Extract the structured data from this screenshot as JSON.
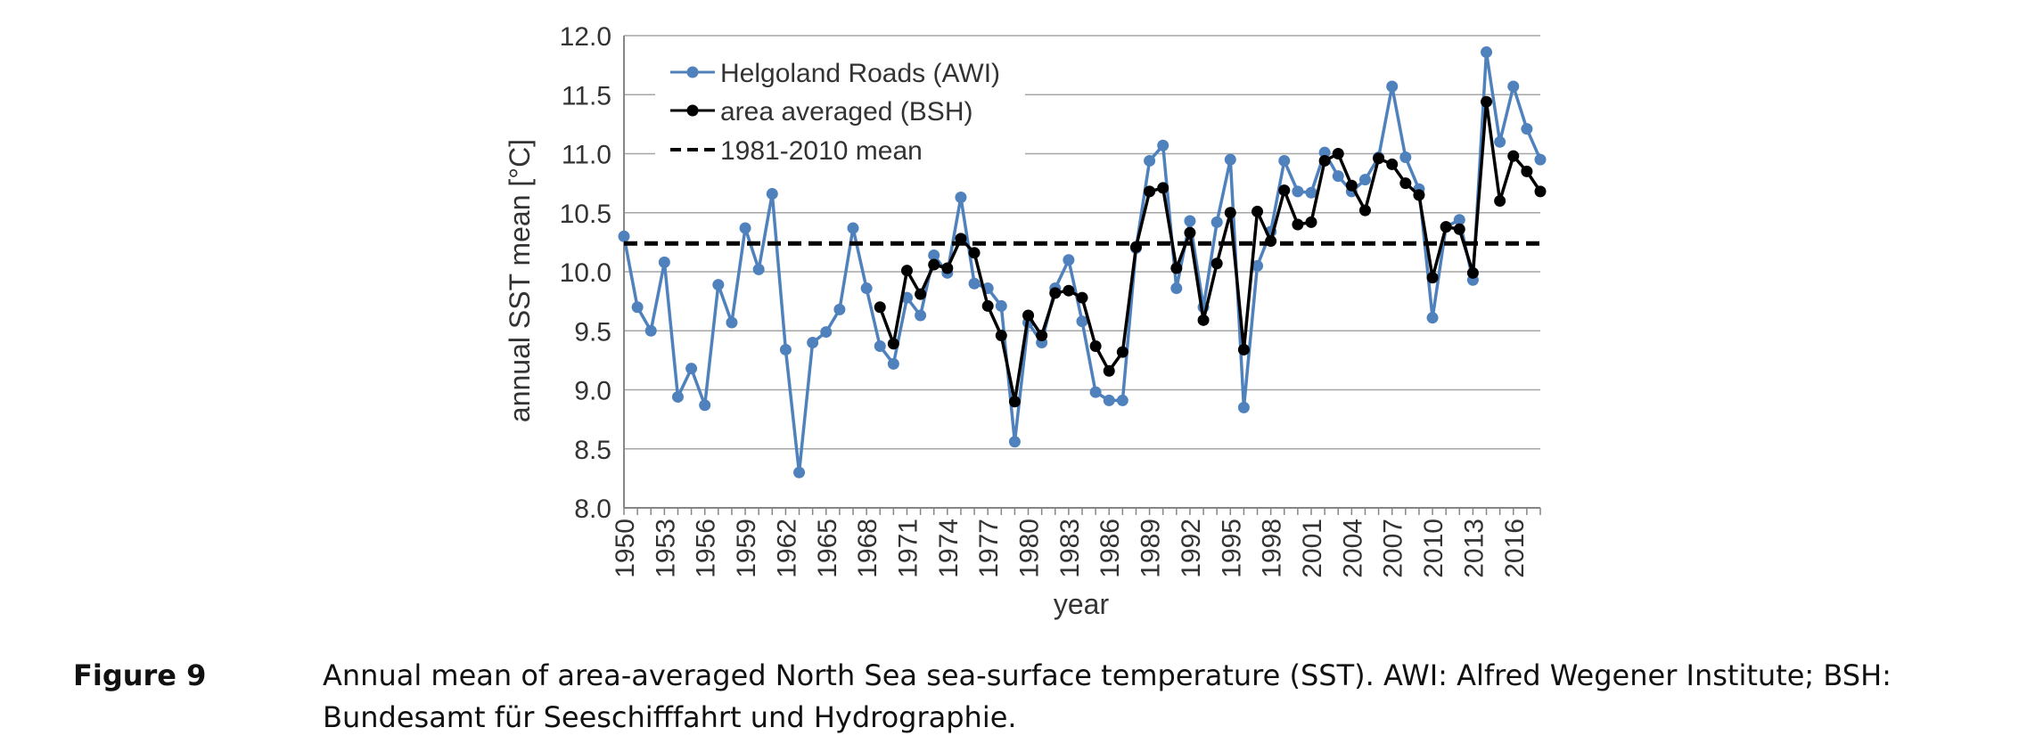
{
  "chart_data": {
    "type": "line",
    "xlabel": "year",
    "ylabel": "annual SST mean [°C]",
    "ylim": [
      8.0,
      12.0
    ],
    "yticks": [
      "8.0",
      "8.5",
      "9.0",
      "9.5",
      "10.0",
      "10.5",
      "11.0",
      "11.5",
      "12.0"
    ],
    "xlim": [
      1950,
      2018
    ],
    "xticks": [
      "1950",
      "1953",
      "1956",
      "1959",
      "1962",
      "1965",
      "1968",
      "1971",
      "1974",
      "1977",
      "1980",
      "1983",
      "1986",
      "1989",
      "1992",
      "1995",
      "1998",
      "2001",
      "2004",
      "2007",
      "2010",
      "2013",
      "2016"
    ],
    "grid": "horizontal",
    "legend_position": "top-left",
    "series": [
      {
        "name": "Helgoland Roads (AWI)",
        "color": "#4f81bd",
        "marker": "circle",
        "x": [
          1950,
          1951,
          1952,
          1953,
          1954,
          1955,
          1956,
          1957,
          1958,
          1959,
          1960,
          1961,
          1962,
          1963,
          1964,
          1965,
          1966,
          1967,
          1968,
          1969,
          1970,
          1971,
          1972,
          1973,
          1974,
          1975,
          1976,
          1977,
          1978,
          1979,
          1980,
          1981,
          1982,
          1983,
          1984,
          1985,
          1986,
          1987,
          1988,
          1989,
          1990,
          1991,
          1992,
          1993,
          1994,
          1995,
          1996,
          1997,
          1998,
          1999,
          2000,
          2001,
          2002,
          2003,
          2004,
          2005,
          2006,
          2007,
          2008,
          2009,
          2010,
          2011,
          2012,
          2013,
          2014,
          2015,
          2016,
          2017,
          2018
        ],
        "values": [
          10.3,
          9.7,
          9.5,
          10.08,
          8.94,
          9.18,
          8.87,
          9.89,
          9.57,
          10.37,
          10.02,
          10.66,
          9.34,
          8.3,
          9.4,
          9.49,
          9.68,
          10.37,
          9.86,
          9.37,
          9.22,
          9.78,
          9.63,
          10.14,
          9.99,
          10.63,
          9.9,
          9.86,
          9.71,
          8.56,
          9.57,
          9.4,
          9.86,
          10.1,
          9.58,
          8.98,
          8.91,
          8.91,
          10.2,
          10.94,
          11.07,
          9.86,
          10.43,
          9.7,
          10.42,
          10.95,
          8.85,
          10.05,
          10.34,
          10.94,
          10.68,
          10.67,
          11.01,
          10.81,
          10.68,
          10.78,
          10.97,
          11.57,
          10.97,
          10.7,
          9.61,
          10.38,
          10.44,
          9.93,
          11.86,
          11.1,
          11.57,
          11.21,
          10.95
        ]
      },
      {
        "name": "area averaged (BSH)",
        "color": "#000000",
        "marker": "circle",
        "x": [
          1969,
          1970,
          1971,
          1972,
          1973,
          1974,
          1975,
          1976,
          1977,
          1978,
          1979,
          1980,
          1981,
          1982,
          1983,
          1984,
          1985,
          1986,
          1987,
          1988,
          1989,
          1990,
          1991,
          1992,
          1993,
          1994,
          1995,
          1996,
          1997,
          1998,
          1999,
          2000,
          2001,
          2002,
          2003,
          2004,
          2005,
          2006,
          2007,
          2008,
          2009,
          2010,
          2011,
          2012,
          2013,
          2014,
          2015,
          2016,
          2017,
          2018
        ],
        "values": [
          9.7,
          9.39,
          10.01,
          9.81,
          10.06,
          10.03,
          10.28,
          10.16,
          9.71,
          9.46,
          8.9,
          9.63,
          9.46,
          9.82,
          9.84,
          9.78,
          9.37,
          9.16,
          9.32,
          10.21,
          10.68,
          10.71,
          10.03,
          10.33,
          9.59,
          10.07,
          10.5,
          9.34,
          10.51,
          10.26,
          10.69,
          10.4,
          10.42,
          10.94,
          11.0,
          10.73,
          10.52,
          10.96,
          10.91,
          10.75,
          10.65,
          9.95,
          10.38,
          10.36,
          9.99,
          11.44,
          10.6,
          10.98,
          10.85,
          10.68
        ]
      },
      {
        "name": "1981-2010 mean",
        "color": "#000000",
        "style": "dashed",
        "x": [
          1950,
          2018
        ],
        "values": [
          10.24,
          10.24
        ]
      }
    ]
  },
  "caption": {
    "label": "Figure 9",
    "text": "Annual mean of area-averaged North Sea sea-surface temperature (SST). AWI: Alfred Wegener Institute; BSH: Bundesamt für Seeschifffahrt und Hydrographie."
  }
}
